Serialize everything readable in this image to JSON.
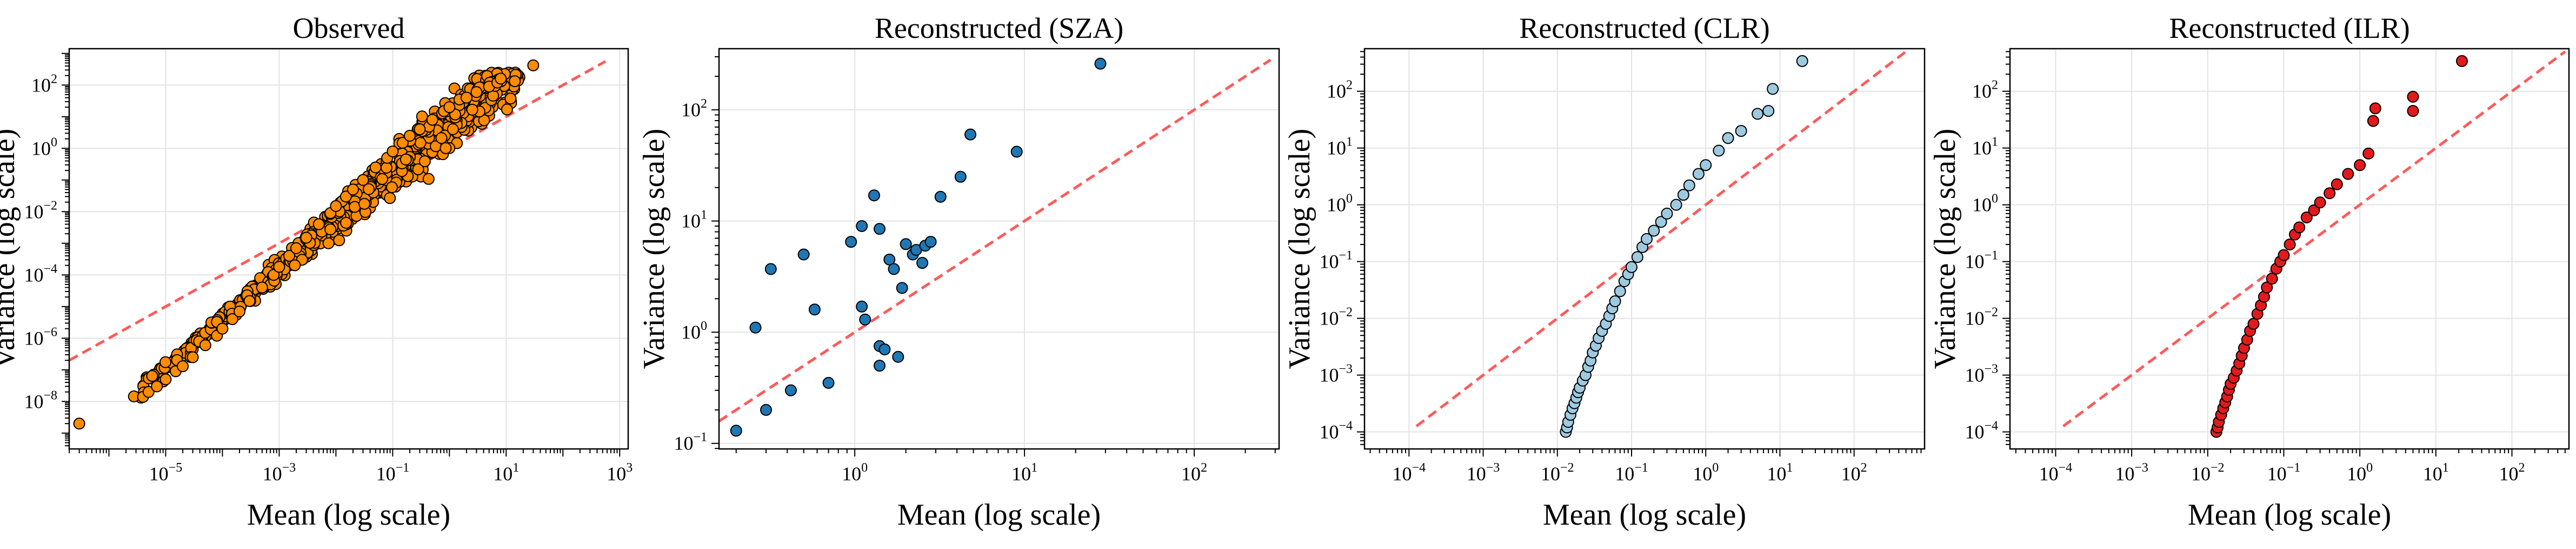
{
  "chart_data": [
    {
      "type": "scatter",
      "title": "Observed",
      "xlabel": "Mean (log scale)",
      "ylabel": "Variance (log scale)",
      "xscale": "log",
      "yscale": "log",
      "xlim_exp": [
        -6.7,
        3.15
      ],
      "ylim_exp": [
        -9.5,
        3.15
      ],
      "xticks_exp": [
        -5,
        -3,
        -1,
        1,
        3
      ],
      "yticks_exp": [
        -8,
        -6,
        -4,
        -2,
        0,
        2
      ],
      "grid": true,
      "point_color": "#ff8c00",
      "reference_line": {
        "label": "y = x",
        "style": "dashed",
        "color": "#ff5a5a"
      },
      "points_summary": {
        "n_approx": 900,
        "x_min": 3e-07,
        "x_max": 30,
        "trend": "variance rises roughly as mean^1.6, tight band, mostly above y=x for mean > 1e-3"
      },
      "points": [
        [
          3e-07,
          2e-09
        ],
        [
          4e-06,
          1.4e-08
        ],
        [
          5e-06,
          2e-08
        ],
        [
          7e-06,
          3e-08
        ],
        [
          1e-05,
          5e-08
        ],
        [
          1.5e-05,
          9e-08
        ],
        [
          2e-05,
          1.3e-07
        ],
        [
          3e-05,
          2.5e-07
        ],
        [
          5e-05,
          6e-07
        ],
        [
          8e-05,
          1.2e-06
        ],
        [
          0.0001,
          2e-06
        ],
        [
          0.00015,
          4e-06
        ],
        [
          0.0002,
          7e-06
        ],
        [
          0.0003,
          1.5e-05
        ],
        [
          0.0005,
          4e-05
        ],
        [
          0.0008,
          0.0001
        ],
        [
          0.001,
          0.00018
        ],
        [
          0.0015,
          0.0004
        ],
        [
          0.002,
          0.0007
        ],
        [
          0.003,
          0.0015
        ],
        [
          0.005,
          0.004
        ],
        [
          0.008,
          0.009
        ],
        [
          0.01,
          0.015
        ],
        [
          0.015,
          0.03
        ],
        [
          0.02,
          0.05
        ],
        [
          0.03,
          0.1
        ],
        [
          0.05,
          0.25
        ],
        [
          0.08,
          0.5
        ],
        [
          0.1,
          0.8
        ],
        [
          0.15,
          1.5
        ],
        [
          0.2,
          2.5
        ],
        [
          0.3,
          4
        ],
        [
          0.5,
          8
        ],
        [
          0.8,
          15
        ],
        [
          1,
          20
        ],
        [
          1.5,
          35
        ],
        [
          2,
          40
        ],
        [
          3,
          60
        ],
        [
          5,
          90
        ],
        [
          7,
          120
        ],
        [
          30,
          420
        ],
        [
          8,
          160
        ]
      ]
    },
    {
      "type": "scatter",
      "title": "Reconstructed (SZA)",
      "xlabel": "Mean (log scale)",
      "ylabel": "Variance (log scale)",
      "xscale": "log",
      "yscale": "log",
      "xlim_exp": [
        -0.8,
        2.5
      ],
      "ylim_exp": [
        -1.05,
        2.55
      ],
      "xticks_exp": [
        0,
        1,
        2
      ],
      "yticks_exp": [
        -1,
        0,
        1,
        2
      ],
      "grid": true,
      "point_color": "#1f77b4",
      "reference_line": {
        "label": "y = x",
        "style": "dashed",
        "color": "#ff5a5a"
      },
      "points": [
        [
          0.2,
          0.13
        ],
        [
          0.26,
          1.1
        ],
        [
          0.3,
          0.2
        ],
        [
          0.32,
          3.7
        ],
        [
          0.42,
          0.3
        ],
        [
          0.5,
          5
        ],
        [
          0.58,
          1.6
        ],
        [
          0.7,
          0.35
        ],
        [
          0.95,
          6.5
        ],
        [
          1.1,
          9
        ],
        [
          1.15,
          1.3
        ],
        [
          1.1,
          1.7
        ],
        [
          1.3,
          17
        ],
        [
          1.4,
          8.5
        ],
        [
          1.4,
          0.75
        ],
        [
          1.4,
          0.5
        ],
        [
          1.5,
          0.7
        ],
        [
          1.6,
          4.5
        ],
        [
          1.7,
          3.7
        ],
        [
          1.8,
          0.6
        ],
        [
          1.9,
          2.5
        ],
        [
          2.0,
          6.2
        ],
        [
          2.2,
          5.0
        ],
        [
          2.3,
          5.5
        ],
        [
          2.5,
          4.2
        ],
        [
          2.6,
          6.0
        ],
        [
          2.8,
          6.5
        ],
        [
          3.2,
          16.5
        ],
        [
          4.2,
          25
        ],
        [
          4.8,
          60
        ],
        [
          9,
          42
        ],
        [
          28,
          260
        ]
      ]
    },
    {
      "type": "scatter",
      "title": "Reconstructed (CLR)",
      "xlabel": "Mean (log scale)",
      "ylabel": "Variance (log scale)",
      "xscale": "log",
      "yscale": "log",
      "xlim_exp": [
        -4.6,
        2.95
      ],
      "ylim_exp": [
        -4.3,
        2.75
      ],
      "xticks_exp": [
        -4,
        -3,
        -2,
        -1,
        0,
        1,
        2
      ],
      "yticks_exp": [
        -4,
        -3,
        -2,
        -1,
        0,
        1,
        2
      ],
      "grid": true,
      "point_color": "#9ecae1",
      "reference_line": {
        "label": "y = x",
        "style": "dashed",
        "color": "#ff5a5a"
      },
      "points": [
        [
          0.013,
          0.0001
        ],
        [
          0.0135,
          0.00012
        ],
        [
          0.014,
          0.00015
        ],
        [
          0.015,
          0.0002
        ],
        [
          0.016,
          0.00026
        ],
        [
          0.017,
          0.00032
        ],
        [
          0.018,
          0.0004
        ],
        [
          0.019,
          0.0005
        ],
        [
          0.02,
          0.0006
        ],
        [
          0.022,
          0.0008
        ],
        [
          0.024,
          0.001
        ],
        [
          0.026,
          0.0014
        ],
        [
          0.028,
          0.0018
        ],
        [
          0.03,
          0.0025
        ],
        [
          0.033,
          0.0033
        ],
        [
          0.036,
          0.0045
        ],
        [
          0.04,
          0.006
        ],
        [
          0.045,
          0.008
        ],
        [
          0.05,
          0.011
        ],
        [
          0.055,
          0.015
        ],
        [
          0.06,
          0.02
        ],
        [
          0.07,
          0.03
        ],
        [
          0.08,
          0.045
        ],
        [
          0.09,
          0.06
        ],
        [
          0.1,
          0.08
        ],
        [
          0.12,
          0.12
        ],
        [
          0.14,
          0.18
        ],
        [
          0.16,
          0.25
        ],
        [
          0.2,
          0.35
        ],
        [
          0.25,
          0.5
        ],
        [
          0.3,
          0.7
        ],
        [
          0.4,
          1.0
        ],
        [
          0.5,
          1.5
        ],
        [
          0.6,
          2.2
        ],
        [
          0.8,
          3.5
        ],
        [
          1.0,
          5
        ],
        [
          1.5,
          9
        ],
        [
          2,
          15
        ],
        [
          3,
          20
        ],
        [
          5,
          40
        ],
        [
          7,
          45
        ],
        [
          8,
          110
        ],
        [
          20,
          340
        ]
      ]
    },
    {
      "type": "scatter",
      "title": "Reconstructed (ILR)",
      "xlabel": "Mean (log scale)",
      "ylabel": "Variance (log scale)",
      "xscale": "log",
      "yscale": "log",
      "xlim_exp": [
        -4.6,
        2.75
      ],
      "ylim_exp": [
        -4.3,
        2.75
      ],
      "xticks_exp": [
        -4,
        -3,
        -2,
        -1,
        0,
        1,
        2
      ],
      "yticks_exp": [
        -4,
        -3,
        -2,
        -1,
        0,
        1,
        2
      ],
      "grid": true,
      "point_color": "#e31a1c",
      "reference_line": {
        "label": "y = x",
        "style": "dashed",
        "color": "#ff5a5a"
      },
      "points": [
        [
          0.013,
          0.0001
        ],
        [
          0.0135,
          0.00012
        ],
        [
          0.014,
          0.00015
        ],
        [
          0.015,
          0.0002
        ],
        [
          0.016,
          0.00026
        ],
        [
          0.017,
          0.00033
        ],
        [
          0.018,
          0.00042
        ],
        [
          0.019,
          0.00055
        ],
        [
          0.02,
          0.0007
        ],
        [
          0.022,
          0.0009
        ],
        [
          0.024,
          0.0012
        ],
        [
          0.026,
          0.0016
        ],
        [
          0.028,
          0.0022
        ],
        [
          0.03,
          0.003
        ],
        [
          0.033,
          0.0042
        ],
        [
          0.036,
          0.006
        ],
        [
          0.04,
          0.008
        ],
        [
          0.045,
          0.012
        ],
        [
          0.05,
          0.017
        ],
        [
          0.055,
          0.024
        ],
        [
          0.06,
          0.035
        ],
        [
          0.07,
          0.05
        ],
        [
          0.08,
          0.075
        ],
        [
          0.09,
          0.1
        ],
        [
          0.1,
          0.13
        ],
        [
          0.12,
          0.2
        ],
        [
          0.14,
          0.3
        ],
        [
          0.16,
          0.4
        ],
        [
          0.2,
          0.6
        ],
        [
          0.25,
          0.8
        ],
        [
          0.3,
          1.1
        ],
        [
          0.4,
          1.6
        ],
        [
          0.5,
          2.3
        ],
        [
          0.7,
          3.5
        ],
        [
          1.0,
          5
        ],
        [
          1.3,
          8
        ],
        [
          1.5,
          30
        ],
        [
          1.6,
          50
        ],
        [
          5,
          80
        ],
        [
          5,
          45
        ],
        [
          22,
          340
        ]
      ]
    }
  ]
}
